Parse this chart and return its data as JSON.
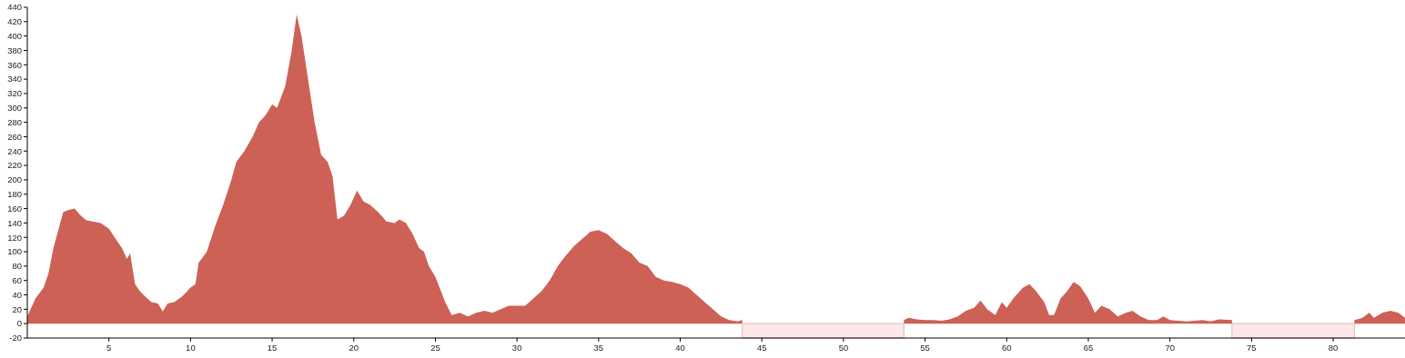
{
  "chart_data": {
    "type": "area",
    "xlim": [
      0,
      84.4
    ],
    "ylim": [
      -20,
      440
    ],
    "xticks": [
      5,
      10,
      15,
      20,
      25,
      30,
      35,
      40,
      45,
      50,
      55,
      60,
      65,
      70,
      75,
      80
    ],
    "yticks": [
      -20,
      0,
      20,
      40,
      60,
      80,
      100,
      120,
      140,
      160,
      180,
      200,
      220,
      240,
      260,
      280,
      300,
      320,
      340,
      360,
      380,
      400,
      420,
      440
    ],
    "grid": false,
    "bands": [
      {
        "axis": "x",
        "from": 43.8,
        "to": 53.7,
        "color": "#fbe9ea"
      },
      {
        "axis": "x",
        "from": 73.8,
        "to": 81.3,
        "color": "#fbe9ea"
      }
    ],
    "series": [
      {
        "color": "#cd6155",
        "x": [
          0,
          0.5,
          1,
          1.3,
          1.6,
          1.9,
          2.2,
          2.5,
          2.9,
          3.2,
          3.6,
          4,
          4.5,
          5,
          5.5,
          5.8,
          6.1,
          6.3,
          6.6,
          6.9,
          7.2,
          7.6,
          8,
          8.3,
          8.6,
          9,
          9.5,
          10,
          10.3,
          10.5,
          11,
          11.5,
          12,
          12.5,
          12.8,
          13.3,
          13.8,
          14.2,
          14.6,
          15,
          15.3,
          15.8,
          16.2,
          16.5,
          16.8,
          17.2,
          17.6,
          18,
          18.4,
          18.7,
          19,
          19.4,
          19.8,
          20.2,
          20.6,
          21,
          21.5,
          22,
          22.5,
          22.8,
          23.2,
          23.6,
          24,
          24.3,
          24.6,
          25,
          25.6,
          26,
          26.5,
          27,
          27.5,
          28,
          28.5,
          29,
          29.5,
          30,
          30.5,
          31,
          31.5,
          32,
          32.5,
          33,
          33.5,
          34,
          34.5,
          35,
          35.5,
          36,
          36.5,
          37,
          37.5,
          38,
          38.5,
          39,
          39.5,
          40,
          40.5,
          41,
          41.5,
          42,
          42.5,
          43,
          43.5,
          43.8
        ],
        "values": [
          10,
          35,
          50,
          70,
          105,
          130,
          155,
          158,
          160,
          152,
          144,
          142,
          140,
          132,
          115,
          105,
          90,
          98,
          55,
          45,
          38,
          30,
          28,
          17,
          28,
          30,
          38,
          50,
          55,
          85,
          100,
          135,
          165,
          200,
          225,
          240,
          260,
          280,
          290,
          305,
          300,
          330,
          380,
          430,
          400,
          340,
          280,
          235,
          225,
          205,
          145,
          150,
          165,
          185,
          170,
          165,
          155,
          142,
          140,
          145,
          140,
          125,
          105,
          100,
          80,
          65,
          30,
          12,
          15,
          10,
          15,
          18,
          15,
          20,
          25,
          25,
          25,
          35,
          45,
          60,
          80,
          95,
          108,
          118,
          128,
          130,
          125,
          115,
          105,
          98,
          85,
          80,
          65,
          60,
          58,
          55,
          50,
          40,
          30,
          20,
          10,
          5,
          3,
          5
        ]
      },
      {
        "color": "#cd6155",
        "x": [
          53.7,
          54,
          54.5,
          55,
          55.5,
          56,
          56.5,
          57,
          57.5,
          58,
          58.4,
          58.8,
          59.3,
          59.7,
          60,
          60.4,
          61,
          61.4,
          61.8,
          62.3,
          62.6,
          62.9,
          63.3,
          63.7,
          64.1,
          64.5,
          65,
          65.4,
          65.8,
          66.3,
          66.8,
          67.3,
          67.7,
          68.2,
          68.7,
          69.2,
          69.6,
          70,
          70.5,
          71,
          71.5,
          72,
          72.5,
          73,
          73.8
        ],
        "values": [
          5,
          8,
          6,
          5,
          5,
          4,
          6,
          10,
          18,
          22,
          32,
          20,
          12,
          30,
          22,
          35,
          50,
          55,
          45,
          30,
          12,
          12,
          35,
          45,
          58,
          52,
          35,
          15,
          25,
          20,
          10,
          15,
          18,
          10,
          5,
          5,
          10,
          5,
          4,
          3,
          4,
          5,
          3,
          6,
          5
        ]
      },
      {
        "color": "#cd6155",
        "x": [
          81.3,
          81.8,
          82.2,
          82.5,
          83,
          83.5,
          84,
          84.4
        ],
        "values": [
          5,
          8,
          15,
          8,
          15,
          18,
          15,
          8
        ]
      }
    ]
  }
}
